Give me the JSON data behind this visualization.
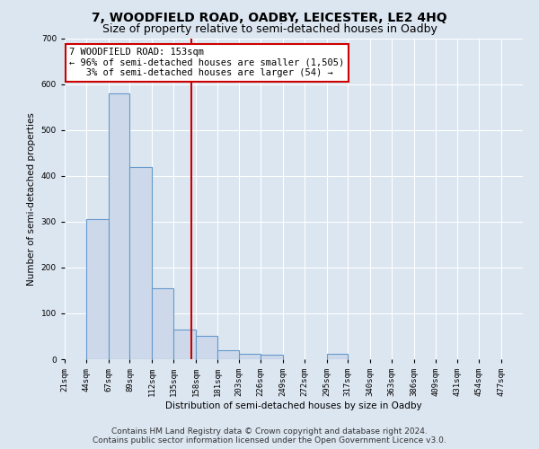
{
  "title": "7, WOODFIELD ROAD, OADBY, LEICESTER, LE2 4HQ",
  "subtitle": "Size of property relative to semi-detached houses in Oadby",
  "xlabel": "Distribution of semi-detached houses by size in Oadby",
  "ylabel": "Number of semi-detached properties",
  "bin_labels": [
    "21sqm",
    "44sqm",
    "67sqm",
    "89sqm",
    "112sqm",
    "135sqm",
    "158sqm",
    "181sqm",
    "203sqm",
    "226sqm",
    "249sqm",
    "272sqm",
    "295sqm",
    "317sqm",
    "340sqm",
    "363sqm",
    "386sqm",
    "409sqm",
    "431sqm",
    "454sqm",
    "477sqm"
  ],
  "bin_edges": [
    21,
    44,
    67,
    89,
    112,
    135,
    158,
    181,
    203,
    226,
    249,
    272,
    295,
    317,
    340,
    363,
    386,
    409,
    431,
    454,
    477,
    500
  ],
  "bar_heights": [
    0,
    305,
    580,
    420,
    155,
    65,
    50,
    20,
    12,
    10,
    0,
    0,
    12,
    0,
    0,
    0,
    0,
    0,
    0,
    0,
    0
  ],
  "bar_color": "#cdd9ea",
  "bar_edgecolor": "#6699cc",
  "property_value": 153,
  "property_line_color": "#cc0000",
  "annotation_line1": "7 WOODFIELD ROAD: 153sqm",
  "annotation_line2": "← 96% of semi-detached houses are smaller (1,505)",
  "annotation_line3": "   3% of semi-detached houses are larger (54) →",
  "annotation_box_color": "#ffffff",
  "annotation_box_edgecolor": "#cc0000",
  "ylim": [
    0,
    700
  ],
  "yticks": [
    0,
    100,
    200,
    300,
    400,
    500,
    600,
    700
  ],
  "background_color": "#dce6f1",
  "plot_background_color": "#dce6f1",
  "grid_color": "#ffffff",
  "title_fontsize": 10,
  "subtitle_fontsize": 9,
  "axis_label_fontsize": 7.5,
  "tick_fontsize": 6.5,
  "annotation_fontsize": 7.5,
  "footer_fontsize": 6.5,
  "footer_line1": "Contains HM Land Registry data © Crown copyright and database right 2024.",
  "footer_line2": "Contains public sector information licensed under the Open Government Licence v3.0."
}
